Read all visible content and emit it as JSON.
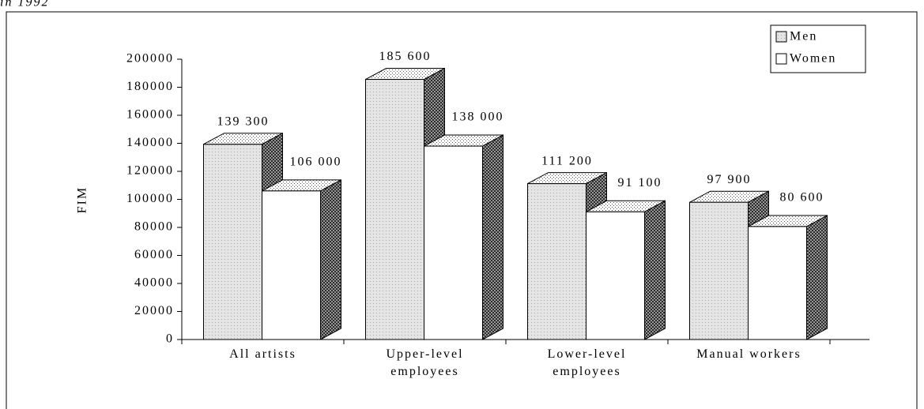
{
  "chart_data": {
    "type": "bar3d",
    "title": "in 1992",
    "y_label": "FIM",
    "categories": [
      "All artists",
      "Upper-level employees",
      "Lower-level employees",
      "Manual workers"
    ],
    "series": [
      {
        "name": "Men",
        "color": "#e4e4e4",
        "values": [
          139300,
          185600,
          111200,
          97900
        ],
        "value_labels": [
          "139 300",
          "185 600",
          "111 200",
          "97 900"
        ]
      },
      {
        "name": "Women",
        "color": "#ffffff",
        "values": [
          106000,
          138000,
          91100,
          80600
        ],
        "value_labels": [
          "106 000",
          "138 000",
          "91 100",
          "80 600"
        ]
      }
    ],
    "ylim": [
      0,
      200000
    ],
    "yticks": [
      0,
      20000,
      40000,
      60000,
      80000,
      100000,
      120000,
      140000,
      160000,
      180000,
      200000
    ],
    "legend": "top-right"
  }
}
